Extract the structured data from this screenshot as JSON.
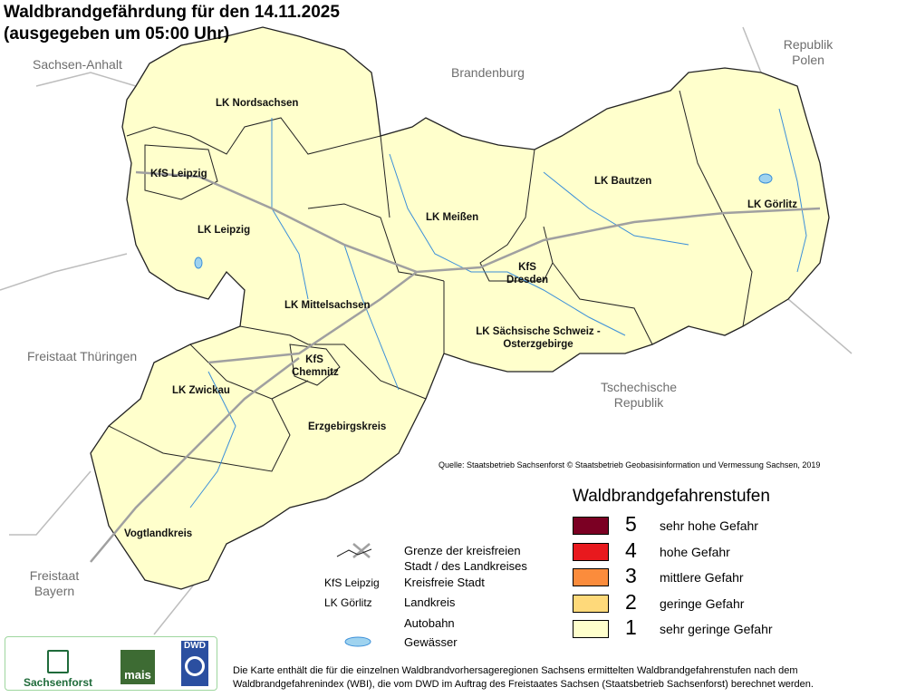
{
  "title": {
    "line1": "Waldbrandgefährdung  für den  14.11.2025",
    "line2": "(ausgegeben um 05:00 Uhr)"
  },
  "neighbors": [
    "Sachsen-Anhalt",
    "Brandenburg",
    "Republik Polen",
    "Freistaat Thüringen",
    "Tschechische Republik",
    "Freistaat Bayern"
  ],
  "districts": [
    {
      "name": "LK Nordsachsen",
      "level": 1
    },
    {
      "name": "KfS Leipzig",
      "level": 1
    },
    {
      "name": "LK Leipzig",
      "level": 1
    },
    {
      "name": "LK Meißen",
      "level": 1
    },
    {
      "name": "LK Bautzen",
      "level": 1
    },
    {
      "name": "LK Görlitz",
      "level": 1
    },
    {
      "name": "KfS Dresden",
      "level": 1
    },
    {
      "name": "LK Mittelsachsen",
      "level": 1
    },
    {
      "name": "LK Sächsische Schweiz - Osterzgebirge",
      "level": 1
    },
    {
      "name": "KfS Chemnitz",
      "level": 1
    },
    {
      "name": "LK Zwickau",
      "level": 1
    },
    {
      "name": "Erzgebirgskreis",
      "level": 1
    },
    {
      "name": "LK Vogtlandkreis",
      "level": 1
    }
  ],
  "district_labels": {
    "nordsachsen": "LK Nordsachsen",
    "kfs_leipzig": "KfS Leipzig",
    "lk_leipzig": "LK Leipzig",
    "meissen": "LK Meißen",
    "bautzen": "LK Bautzen",
    "goerlitz": "LK Görlitz",
    "dresden1": "KfS",
    "dresden2": "Dresden",
    "mittelsachsen": "LK Mittelsachsen",
    "ssoe1": "LK Sächsische Schweiz -",
    "ssoe2": "Osterzgebirge",
    "chemnitz1": "KfS",
    "chemnitz2": "Chemnitz",
    "zwickau": "LK Zwickau",
    "erzgebirge": "Erzgebirgskreis",
    "vogtland": "Vogtlandkreis"
  },
  "source": "Quelle: Staatsbetrieb Sachsenforst  © Staatsbetrieb Geobasisinformation und Vermessung Sachsen, 2019",
  "legend": {
    "title": "Waldbrandgefahrenstufen",
    "items": [
      {
        "level": "5",
        "label": "sehr hohe Gefahr",
        "color": "#7b0023"
      },
      {
        "level": "4",
        "label": "hohe Gefahr",
        "color": "#e8191e"
      },
      {
        "level": "3",
        "label": "mittlere Gefahr",
        "color": "#fb8c3c"
      },
      {
        "level": "2",
        "label": "geringe Gefahr",
        "color": "#fed97a"
      },
      {
        "level": "1",
        "label": "sehr geringe Gefahr",
        "color": "#ffffcc"
      }
    ]
  },
  "key": {
    "border1": "Grenze der kreisfreien",
    "border2": "Stadt / des Landkreises",
    "kfs_sample": "KfS Leipzig",
    "kfs": "Kreisfreie Stadt",
    "lk_sample": "LK Görlitz",
    "lk": "Landkreis",
    "autobahn": "Autobahn",
    "water": "Gewässer"
  },
  "logos": {
    "sachsenforst": "Sachsenforst",
    "mais": "mais",
    "dwd": "DWD"
  },
  "footer": {
    "line1": "Die Karte enthält die für die einzelnen Waldbrandvorhersageregionen Sachsens ermittelten Waldbrandgefahrenstufen nach dem",
    "line2": "Waldbrandgefahrenindex (WBI), die vom DWD im Auftrag des Freistaates Sachsen (Staatsbetrieb Sachsenforst) berechnet werden."
  },
  "colors": {
    "map_fill": "#ffffcc",
    "river": "#3b8fd9",
    "road": "#a0a0a0",
    "border": "#222222"
  }
}
